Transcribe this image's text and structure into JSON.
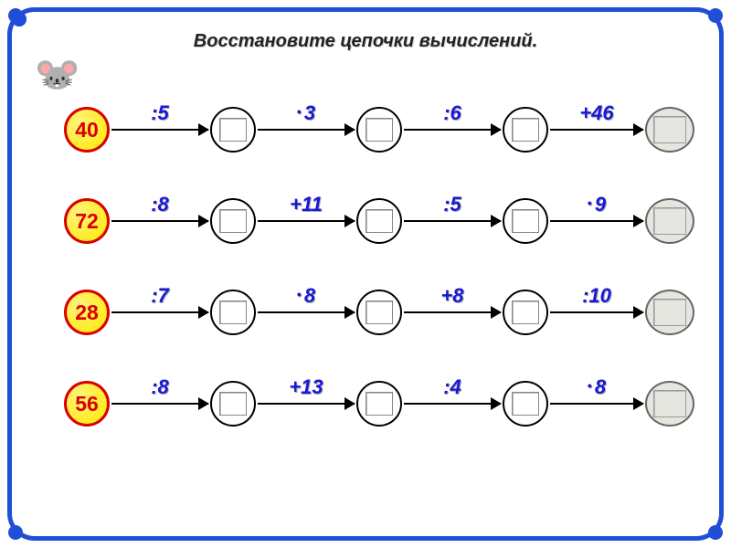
{
  "title": "Восстановите цепочки вычислений.",
  "colors": {
    "frame": "#1e4fd6",
    "op_text": "#1818d8",
    "start_border": "#d90000",
    "start_fill": "#ffea00",
    "start_text": "#d90000",
    "slot_border": "#000000",
    "final_fill": "#e6e6e0",
    "background": "#ffffff"
  },
  "typography": {
    "title_fontsize": 20,
    "op_fontsize": 22,
    "start_fontsize": 23
  },
  "chains": [
    {
      "start": "40",
      "ops": [
        ":5",
        "·3",
        ":6",
        "+46"
      ]
    },
    {
      "start": "72",
      "ops": [
        ":8",
        "+11",
        ":5",
        "·9"
      ]
    },
    {
      "start": "28",
      "ops": [
        ":7",
        "·8",
        "+8",
        ":10"
      ]
    },
    {
      "start": "56",
      "ops": [
        ":8",
        "+13",
        ":4",
        "·8"
      ]
    }
  ]
}
